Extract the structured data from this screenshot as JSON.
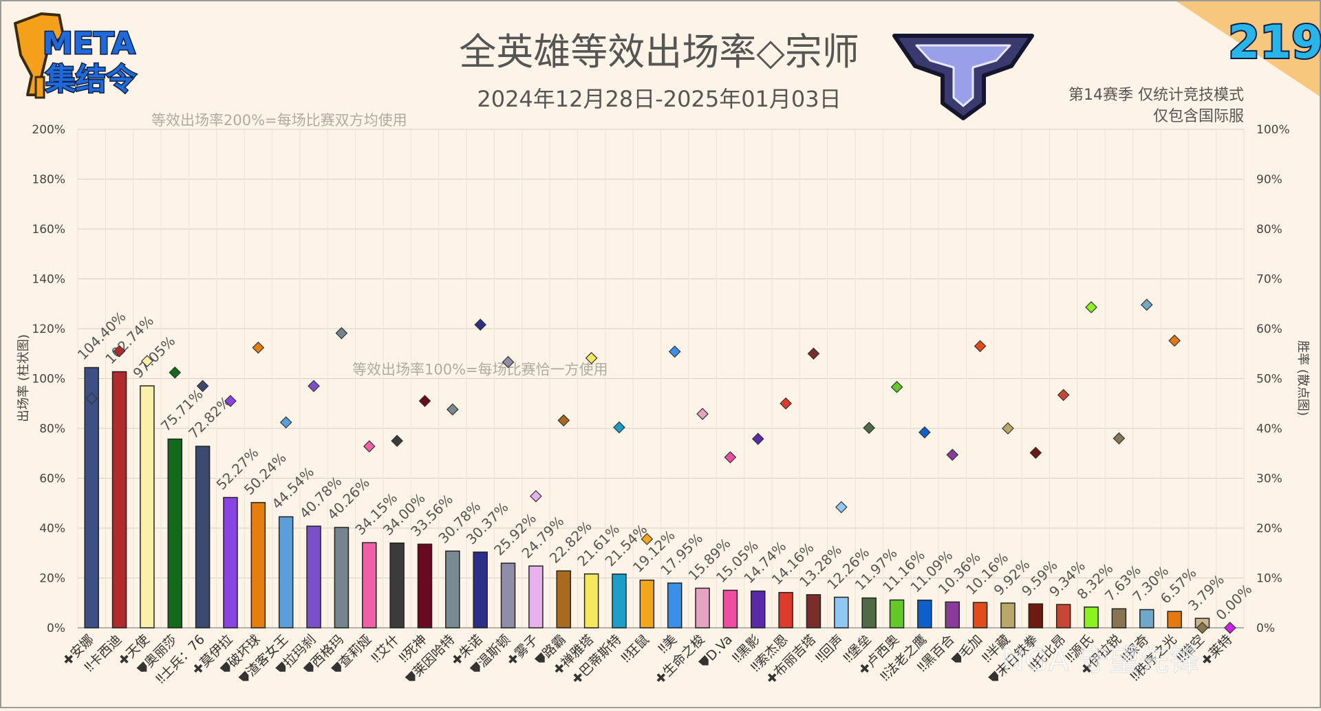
{
  "header": {
    "logo_text_line1": "META",
    "logo_text_line2": "集结令",
    "issue_number": "219",
    "title": "全英雄等效出场率◇宗师",
    "date_range": "2024年12月28日-2025年01月03日",
    "note_line1": "第14赛季 仅统计竞技模式",
    "note_line2": "仅包含国际服",
    "watermark": "NGA 守望先锋"
  },
  "chart_data": {
    "type": "bar",
    "xlabel": "",
    "ylabel": "出场率 (柱状图)",
    "y2label": "胜率 (散点图)",
    "ylim": [
      0,
      200
    ],
    "y2lim": [
      0,
      100
    ],
    "yticks": [
      "0%",
      "20%",
      "40%",
      "60%",
      "80%",
      "100%",
      "120%",
      "140%",
      "160%",
      "180%",
      "200%"
    ],
    "y2ticks": [
      "0%",
      "10%",
      "20%",
      "30%",
      "40%",
      "50%",
      "60%",
      "70%",
      "80%",
      "90%",
      "100%"
    ],
    "grid": true,
    "reference_lines": [
      {
        "value": 200,
        "label": "等效出场率200%=每场比赛双方均使用"
      },
      {
        "value": 100,
        "label": "等效出场率100%=每场比赛恰一方使用"
      }
    ],
    "role_icons": {
      "support": "✚",
      "damage": "‼",
      "tank": "⛊"
    },
    "categories": [
      "安娜",
      "卡西迪",
      "天使",
      "奥丽莎",
      "士兵：76",
      "莫伊拉",
      "破坏球",
      "渣客女王",
      "拉玛刹",
      "西格玛",
      "查莉娅",
      "艾什",
      "死神",
      "莱因哈特",
      "朱诺",
      "温斯顿",
      "雾子",
      "路霸",
      "禅雅塔",
      "巴蒂斯特",
      "狂鼠",
      "美",
      "生命之梭",
      "D.Va",
      "黑影",
      "索杰恩",
      "布丽吉塔",
      "回声",
      "堡垒",
      "卢西奥",
      "法老之鹰",
      "黑百合",
      "毛加",
      "半藏",
      "末日铁拳",
      "托比昂",
      "源氏",
      "伊拉锐",
      "探奇",
      "秩序之光",
      "猎空",
      "莱特"
    ],
    "roles": [
      "support",
      "damage",
      "support",
      "tank",
      "damage",
      "support",
      "tank",
      "tank",
      "tank",
      "tank",
      "tank",
      "damage",
      "damage",
      "tank",
      "support",
      "tank",
      "support",
      "tank",
      "support",
      "support",
      "damage",
      "damage",
      "support",
      "tank",
      "damage",
      "damage",
      "support",
      "damage",
      "damage",
      "support",
      "damage",
      "damage",
      "tank",
      "damage",
      "tank",
      "damage",
      "damage",
      "support",
      "damage",
      "damage",
      "damage",
      "support"
    ],
    "series": [
      {
        "name": "出场率",
        "values": [
          104.4,
          102.74,
          97.05,
          75.71,
          72.82,
          52.27,
          50.24,
          44.54,
          40.78,
          40.26,
          34.15,
          34.0,
          33.56,
          30.78,
          30.37,
          25.92,
          24.79,
          22.82,
          21.61,
          21.54,
          19.12,
          17.95,
          15.89,
          15.05,
          14.74,
          14.16,
          13.28,
          12.26,
          11.97,
          11.16,
          11.09,
          10.36,
          10.16,
          9.92,
          9.59,
          9.34,
          8.32,
          7.63,
          7.3,
          6.57,
          3.79,
          0.0
        ],
        "labels": [
          "104.40%",
          "102.74%",
          "97.05%",
          "75.71%",
          "72.82%",
          "52.27%",
          "50.24%",
          "44.54%",
          "40.78%",
          "40.26%",
          "34.15%",
          "34.00%",
          "33.56%",
          "30.78%",
          "30.37%",
          "25.92%",
          "24.79%",
          "22.82%",
          "21.61%",
          "21.54%",
          "19.12%",
          "17.95%",
          "15.89%",
          "15.05%",
          "14.74%",
          "14.16%",
          "13.28%",
          "12.26%",
          "11.97%",
          "11.16%",
          "11.09%",
          "10.36%",
          "10.16%",
          "9.92%",
          "9.59%",
          "9.34%",
          "8.32%",
          "7.63%",
          "7.30%",
          "6.57%",
          "3.79%",
          "0.00%"
        ]
      },
      {
        "name": "胜率",
        "values": [
          46.0,
          55.5,
          53.5,
          51.2,
          48.5,
          45.5,
          56.2,
          41.2,
          48.5,
          59.1,
          36.4,
          37.5,
          45.5,
          43.8,
          60.8,
          53.3,
          26.4,
          41.6,
          54.1,
          40.2,
          17.8,
          55.4,
          42.9,
          34.2,
          37.9,
          45.0,
          55.0,
          24.2,
          40.1,
          48.3,
          39.2,
          34.7,
          56.5,
          40.0,
          35.1,
          46.7,
          64.3,
          38.0,
          64.8,
          57.6,
          0.0,
          0.0
        ]
      }
    ],
    "colors": [
      "#3d5085",
      "#b02a2e",
      "#fbf0a8",
      "#136a18",
      "#3c4a70",
      "#8a44e6",
      "#e67e0e",
      "#5b9fd8",
      "#7a4fc9",
      "#74858f",
      "#f060a8",
      "#3b3b3b",
      "#6a0a22",
      "#7a8a92",
      "#2a2f8a",
      "#8e8ea8",
      "#e7b2ea",
      "#a86a1e",
      "#f4e85c",
      "#1a9fca",
      "#f3a61c",
      "#3a8fe8",
      "#e4a4c0",
      "#ee4da2",
      "#5a2ba8",
      "#dc3b2b",
      "#7a2e2a",
      "#8fc8f4",
      "#4e6b45",
      "#63c92a",
      "#0e5fca",
      "#8a3a9a",
      "#e24b1a",
      "#b8a86a",
      "#6d1a10",
      "#c84636",
      "#8cf21e",
      "#8a7450",
      "#6fa8c8",
      "#e4790e",
      "#c8b48e",
      "#c8c8c8"
    ],
    "marker_colors": [
      "#3d5085",
      "#b02a2e",
      "#fbf0a8",
      "#136a18",
      "#3c4a70",
      "#8a44e6",
      "#e67e0e",
      "#5b9fd8",
      "#7a4fc9",
      "#74858f",
      "#f060a8",
      "#3b3b3b",
      "#6a0a22",
      "#7a8a92",
      "#2a2f8a",
      "#8e8ea8",
      "#e7b2ea",
      "#a86a1e",
      "#f4e85c",
      "#1a9fca",
      "#f3a61c",
      "#3a8fe8",
      "#e4a4c0",
      "#ee4da2",
      "#5a2ba8",
      "#dc3b2b",
      "#7a2e2a",
      "#8fc8f4",
      "#4e6b45",
      "#63c92a",
      "#0e5fca",
      "#8a3a9a",
      "#e24b1a",
      "#b8a86a",
      "#6d1a10",
      "#c84636",
      "#8cf21e",
      "#8a7450",
      "#6fa8c8",
      "#e4790e",
      "#8a7450",
      "#cc22ee"
    ]
  }
}
